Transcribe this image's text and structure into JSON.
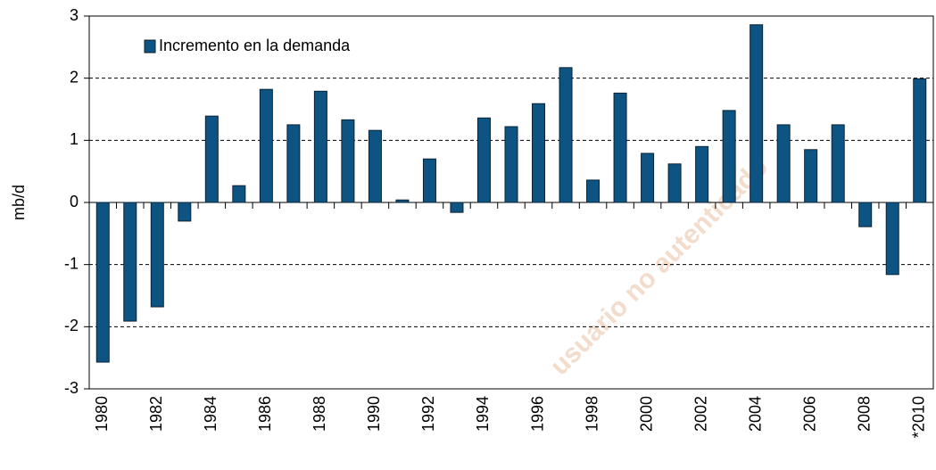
{
  "chart_data": {
    "type": "bar",
    "y_label": "mb/d",
    "watermark": "usuario no autenticado",
    "categories": [
      "1980",
      null,
      "1982",
      null,
      "1984",
      null,
      "1986",
      null,
      "1988",
      null,
      "1990",
      null,
      "1992",
      null,
      "1994",
      null,
      "1996",
      null,
      "1998",
      null,
      "2000",
      null,
      "2002",
      null,
      "2004",
      null,
      "2006",
      null,
      "2008",
      null,
      "*2010"
    ],
    "series": [
      {
        "name": "Incremento en la demanda",
        "color": "#0d5483",
        "values": [
          -2.57,
          -1.91,
          -1.68,
          -0.3,
          1.39,
          0.27,
          1.82,
          1.25,
          1.79,
          1.33,
          1.16,
          0.04,
          0.7,
          -0.16,
          1.36,
          1.22,
          1.59,
          2.17,
          0.36,
          1.76,
          0.79,
          0.62,
          0.9,
          1.48,
          2.86,
          1.25,
          0.85,
          1.25,
          -0.39,
          -1.16,
          1.99
        ]
      }
    ],
    "ylim": [
      -3,
      3
    ],
    "yticks": [
      -3,
      -2,
      -1,
      0,
      1,
      2,
      3
    ],
    "grid": true,
    "legend": "top-left"
  }
}
